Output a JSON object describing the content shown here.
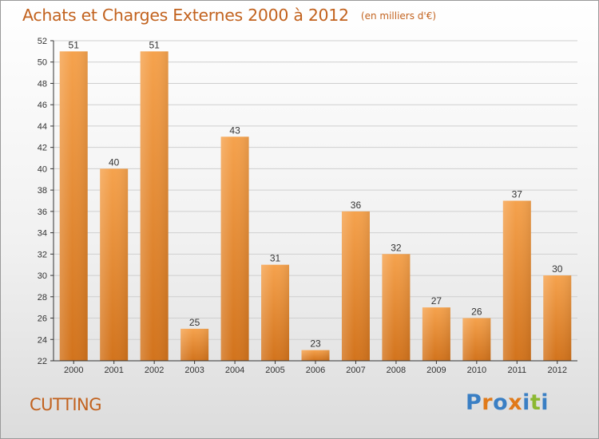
{
  "header": {
    "title": "Achats et Charges Externes 2000 à 2012",
    "unit": "(en milliers d'€)"
  },
  "footer": {
    "commune": "CUTTING",
    "logo_text": "Proxiti",
    "logo_letter_colors": [
      "#3a7fc4",
      "#e07a1a",
      "#3a7fc4",
      "#e07a1a",
      "#3a7fc4",
      "#8cb832",
      "#3a7fc4"
    ]
  },
  "colors": {
    "title": "#c2621e",
    "bar_top": "#f5a24d",
    "bar_bottom": "#d2731c",
    "axis": "#333333",
    "grid": "#cfcfcf"
  },
  "chart_data": {
    "type": "bar",
    "title": "Achats et Charges Externes 2000 à 2012",
    "subtitle": "(en milliers d'€)",
    "categories": [
      "2000",
      "2001",
      "2002",
      "2003",
      "2004",
      "2005",
      "2006",
      "2007",
      "2008",
      "2009",
      "2010",
      "2011",
      "2012"
    ],
    "values": [
      51,
      40,
      51,
      25,
      43,
      31,
      23,
      36,
      32,
      27,
      26,
      37,
      30
    ],
    "ylim": [
      22,
      52
    ],
    "yticks": [
      22,
      24,
      26,
      28,
      30,
      32,
      34,
      36,
      38,
      40,
      42,
      44,
      46,
      48,
      50,
      52
    ],
    "grid": true,
    "data_labels": true,
    "xlabel": "",
    "ylabel": ""
  }
}
